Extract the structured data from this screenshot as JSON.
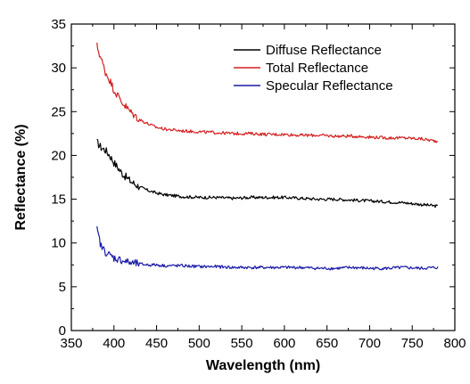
{
  "chart_data": {
    "type": "line",
    "title": "",
    "xlabel": "Wavelength (nm)",
    "ylabel": "Reflectance (%)",
    "xlim": [
      350,
      800
    ],
    "ylim": [
      0,
      35
    ],
    "xticks": [
      "350",
      "400",
      "450",
      "500",
      "550",
      "600",
      "650",
      "700",
      "750",
      "800"
    ],
    "yticks": [
      "0",
      "5",
      "10",
      "15",
      "20",
      "25",
      "30",
      "35"
    ],
    "grid": false,
    "legend_position": "top-right",
    "series": [
      {
        "name": "Diffuse Reflectance",
        "color": "#000000",
        "x": [
          380,
          385,
          390,
          395,
          400,
          410,
          420,
          430,
          440,
          450,
          460,
          480,
          500,
          520,
          540,
          560,
          580,
          600,
          620,
          640,
          660,
          680,
          700,
          720,
          740,
          760,
          780
        ],
        "y": [
          21.5,
          20.9,
          20.6,
          20.0,
          19.2,
          17.9,
          17.0,
          16.4,
          16.0,
          15.7,
          15.5,
          15.3,
          15.2,
          15.2,
          15.1,
          15.2,
          15.2,
          15.2,
          15.1,
          15.0,
          15.0,
          14.9,
          14.8,
          14.7,
          14.6,
          14.4,
          14.2
        ]
      },
      {
        "name": "Total Reflectance",
        "color": "#d42020",
        "x": [
          380,
          385,
          390,
          395,
          400,
          410,
          420,
          430,
          440,
          450,
          460,
          480,
          500,
          520,
          540,
          560,
          580,
          600,
          620,
          640,
          660,
          680,
          700,
          720,
          740,
          760,
          780
        ],
        "y": [
          32.5,
          31.0,
          29.5,
          28.6,
          27.5,
          26.0,
          24.9,
          24.1,
          23.6,
          23.2,
          23.0,
          22.8,
          22.7,
          22.6,
          22.5,
          22.5,
          22.4,
          22.4,
          22.3,
          22.3,
          22.2,
          22.2,
          22.1,
          22.0,
          22.0,
          21.9,
          21.6
        ]
      },
      {
        "name": "Specular Reflectance",
        "color": "#1a1aa8",
        "x": [
          380,
          385,
          390,
          395,
          400,
          410,
          420,
          430,
          440,
          450,
          460,
          480,
          500,
          520,
          540,
          560,
          580,
          600,
          620,
          640,
          660,
          680,
          700,
          720,
          740,
          760,
          780
        ],
        "y": [
          11.5,
          9.6,
          9.0,
          8.6,
          8.3,
          8.0,
          7.7,
          7.6,
          7.5,
          7.5,
          7.4,
          7.4,
          7.3,
          7.3,
          7.2,
          7.2,
          7.2,
          7.2,
          7.2,
          7.1,
          7.1,
          7.2,
          7.1,
          7.1,
          7.2,
          7.1,
          7.2
        ]
      }
    ]
  }
}
